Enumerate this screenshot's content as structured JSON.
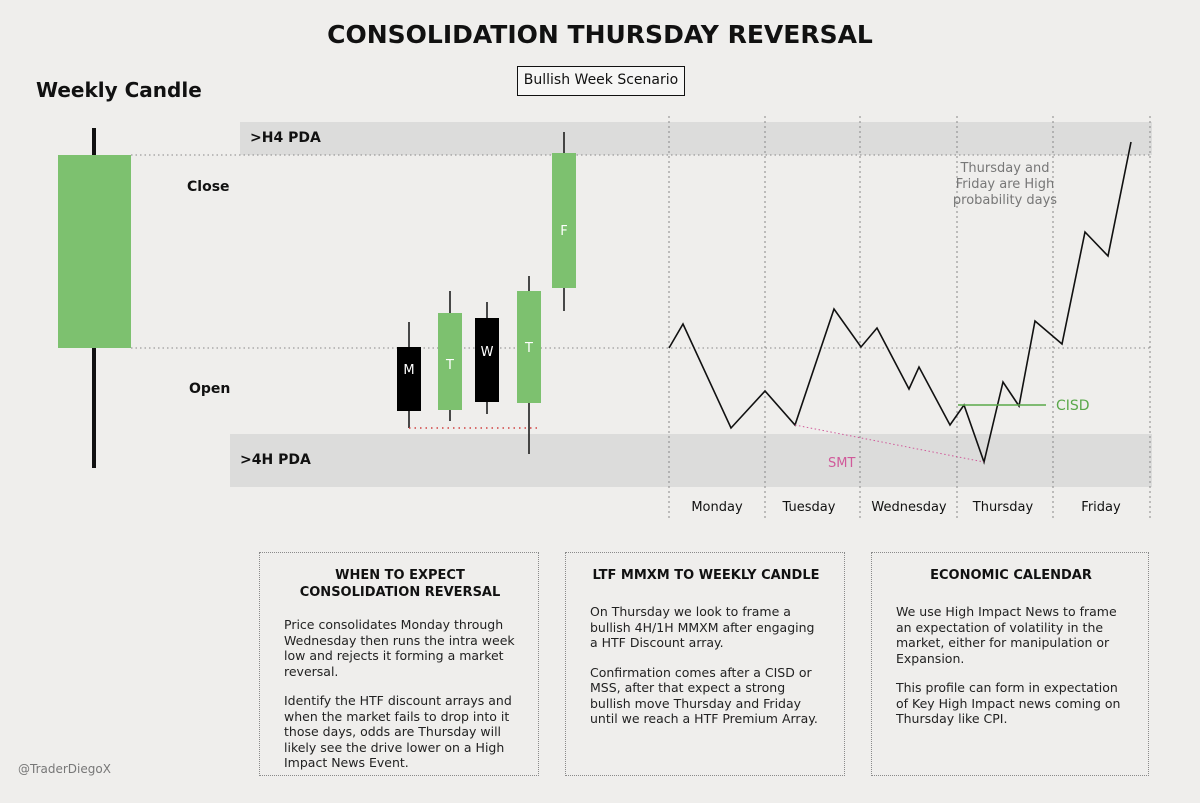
{
  "title": "CONSOLIDATION THURSDAY REVERSAL",
  "scenario": "Bullish Week Scenario",
  "weekly_candle_label": "Weekly Candle",
  "close_label": "Close",
  "open_label": "Open",
  "upper_pda_label": ">H4 PDA",
  "lower_pda_label": ">4H PDA",
  "candles": [
    {
      "letter": "M",
      "color": "bullish-false"
    },
    {
      "letter": "T",
      "color": "bullish-true"
    },
    {
      "letter": "W",
      "color": "bullish-false"
    },
    {
      "letter": "T",
      "color": "bullish-true"
    },
    {
      "letter": "F",
      "color": "bullish-true"
    }
  ],
  "days": [
    "Monday",
    "Tuesday",
    "Wednesday",
    "Thursday",
    "Friday"
  ],
  "high_prob_note": "Thursday and Friday are High probability days",
  "cisd_label": "CISD",
  "smt_label": "SMT",
  "colors": {
    "bullish": "#7dc16f",
    "bearish": "#000000",
    "band": "#dcdcdb",
    "cisd": "#5aa84a",
    "smt": "#d05a9a",
    "low_marker": "#d04040"
  },
  "cards": [
    {
      "title": "WHEN TO EXPECT CONSOLIDATION REVERSAL",
      "paragraphs": [
        "Price consolidates Monday through Wednesday then runs the intra week low and rejects it forming a market reversal.",
        "Identify the HTF discount arrays and when the market fails to drop into it those days, odds are Thursday will likely see the drive lower on a High Impact News Event."
      ]
    },
    {
      "title": "LTF MMXM TO WEEKLY CANDLE",
      "paragraphs": [
        "On Thursday we look to frame a bullish 4H/1H MMXM after engaging a HTF Discount array.",
        "Confirmation comes after a CISD or MSS, after that expect a strong bullish move Thursday and Friday until we reach a HTF Premium Array."
      ]
    },
    {
      "title": "ECONOMIC CALENDAR",
      "paragraphs": [
        "We use High Impact News to frame an expectation of volatility in the market, either for manipulation or Expansion.",
        "This profile can form in expectation of Key High Impact news coming on Thursday like CPI."
      ]
    }
  ],
  "footer": "@TraderDiegoX"
}
